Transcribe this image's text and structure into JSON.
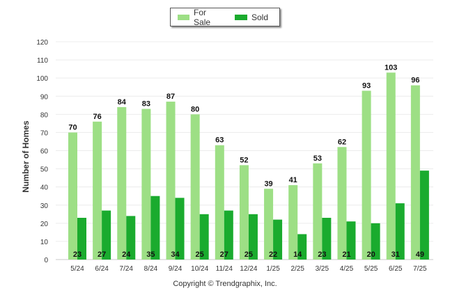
{
  "chart_data": {
    "type": "bar",
    "categories": [
      "5/24",
      "6/24",
      "7/24",
      "8/24",
      "9/24",
      "10/24",
      "11/24",
      "12/24",
      "1/25",
      "2/25",
      "3/25",
      "4/25",
      "5/25",
      "6/25",
      "7/25"
    ],
    "series": [
      {
        "name": "For Sale",
        "color": "#9ddf85",
        "values": [
          70,
          76,
          84,
          83,
          87,
          80,
          63,
          52,
          39,
          41,
          53,
          62,
          93,
          103,
          96
        ]
      },
      {
        "name": "Sold",
        "color": "#1aab2e",
        "values": [
          23,
          27,
          24,
          35,
          34,
          25,
          27,
          25,
          22,
          14,
          23,
          21,
          20,
          31,
          49
        ]
      }
    ],
    "ylabel": "Number of Homes",
    "ylim": [
      0,
      120
    ],
    "yticks": [
      0,
      10,
      20,
      30,
      40,
      50,
      60,
      70,
      80,
      90,
      100,
      110,
      120
    ],
    "grid": true,
    "legend_position": "top-center"
  },
  "credit": "Copyright © Trendgraphix, Inc."
}
